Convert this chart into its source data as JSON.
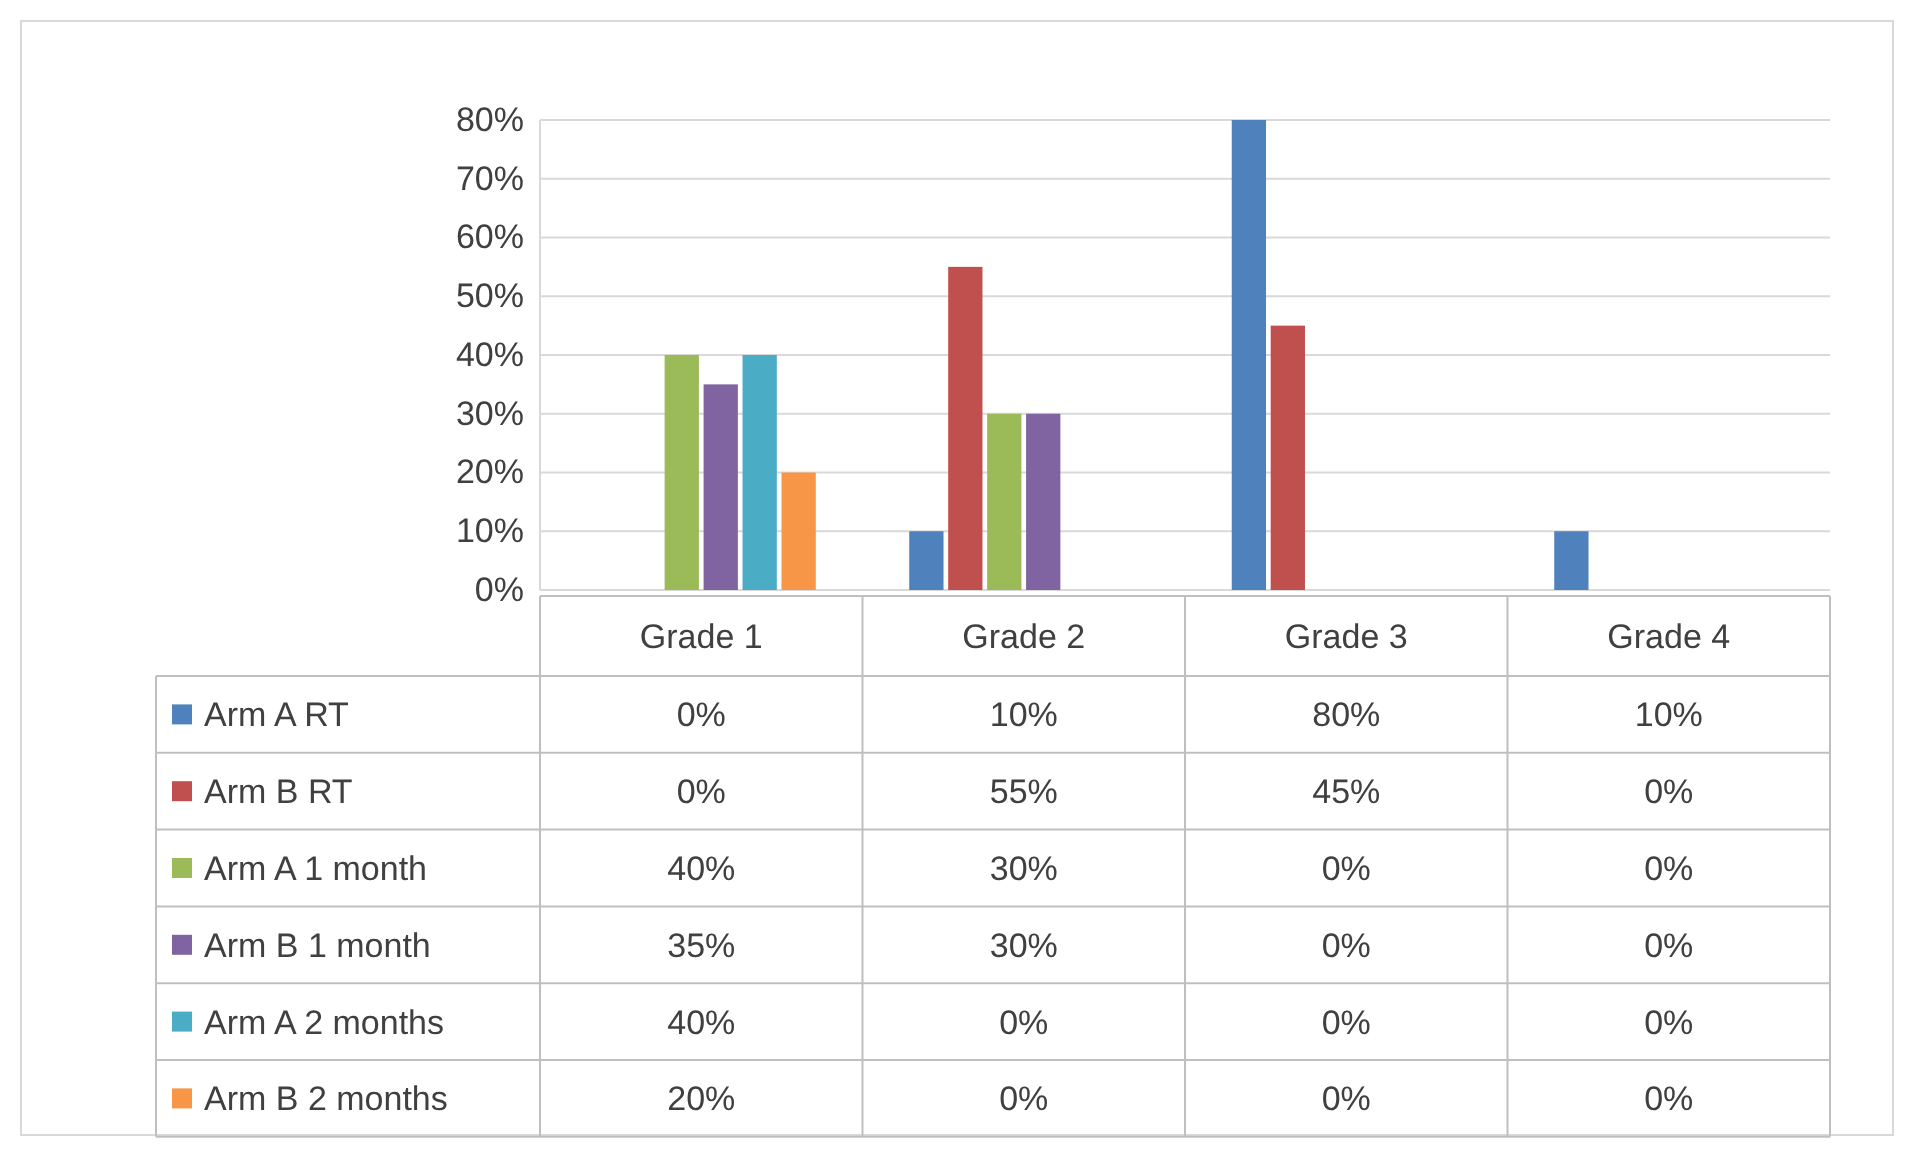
{
  "chart_data": {
    "type": "bar",
    "categories": [
      "Grade 1",
      "Grade 2",
      "Grade 3",
      "Grade 4"
    ],
    "ylim": [
      0,
      80
    ],
    "yticks": [
      {
        "value": 0,
        "label": "0%"
      },
      {
        "value": 10,
        "label": "10%"
      },
      {
        "value": 20,
        "label": "20%"
      },
      {
        "value": 30,
        "label": "30%"
      },
      {
        "value": 40,
        "label": "40%"
      },
      {
        "value": 50,
        "label": "50%"
      },
      {
        "value": 60,
        "label": "60%"
      },
      {
        "value": 70,
        "label": "70%"
      },
      {
        "value": 80,
        "label": "80%"
      }
    ],
    "grid": "y",
    "legend": "bottom",
    "series": [
      {
        "name": "Arm A RT",
        "color": "#4f81bd",
        "values": [
          0,
          10,
          80,
          10
        ],
        "value_labels": [
          "0%",
          "10%",
          "80%",
          "10%"
        ]
      },
      {
        "name": "Arm B RT",
        "color": "#c0504d",
        "values": [
          0,
          55,
          45,
          0
        ],
        "value_labels": [
          "0%",
          "55%",
          "45%",
          "0%"
        ]
      },
      {
        "name": "Arm A 1 month",
        "color": "#9bbb59",
        "values": [
          40,
          30,
          0,
          0
        ],
        "value_labels": [
          "40%",
          "30%",
          "0%",
          "0%"
        ]
      },
      {
        "name": "Arm B 1 month",
        "color": "#8064a2",
        "values": [
          35,
          30,
          0,
          0
        ],
        "value_labels": [
          "35%",
          "30%",
          "0%",
          "0%"
        ]
      },
      {
        "name": "Arm A 2 months",
        "color": "#4bacc6",
        "values": [
          40,
          0,
          0,
          0
        ],
        "value_labels": [
          "40%",
          "0%",
          "0%",
          "0%"
        ]
      },
      {
        "name": "Arm B 2 months",
        "color": "#f79646",
        "values": [
          20,
          0,
          0,
          0
        ],
        "value_labels": [
          "20%",
          "0%",
          "0%",
          "0%"
        ]
      }
    ]
  }
}
